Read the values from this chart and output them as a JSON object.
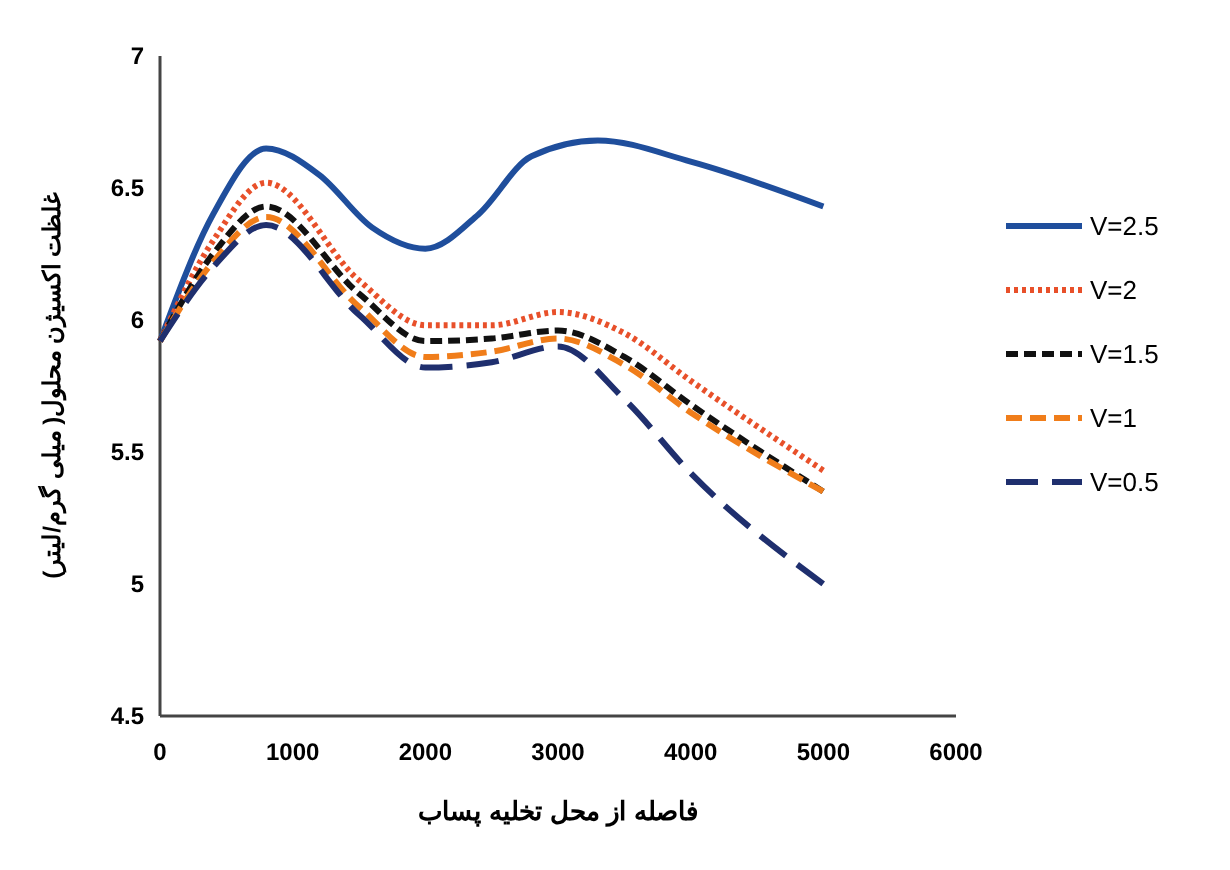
{
  "chart_data": {
    "type": "line",
    "xlabel": "فاصله از محل تخلیه پساب",
    "ylabel": "غلظت اکسیژن محلول( میلی گرم/لیتر)",
    "xlim": [
      0,
      6000
    ],
    "xticks": [
      0,
      1000,
      2000,
      3000,
      4000,
      5000,
      6000
    ],
    "ylim": [
      4.5,
      7
    ],
    "yticks": [
      4.5,
      5,
      5.5,
      6,
      6.5,
      7
    ],
    "grid": false,
    "legend": "right",
    "series": [
      {
        "name": "V=2.5",
        "color": "#1f4e9c",
        "line_style": "solid",
        "x": [
          0,
          400,
          800,
          1200,
          1600,
          2000,
          2400,
          2800,
          3300,
          4000,
          5000
        ],
        "values": [
          5.92,
          6.4,
          6.65,
          6.55,
          6.35,
          6.27,
          6.4,
          6.62,
          6.68,
          6.6,
          6.43
        ]
      },
      {
        "name": "V=2",
        "color": "#e8502a",
        "line_style": "dotted",
        "x": [
          0,
          400,
          800,
          1500,
          2000,
          2500,
          3000,
          3500,
          4000,
          5000
        ],
        "values": [
          5.92,
          6.3,
          6.52,
          6.15,
          5.98,
          5.98,
          6.03,
          5.95,
          5.77,
          5.43
        ]
      },
      {
        "name": "V=1.5",
        "color": "#111111",
        "line_style": "dashed",
        "x": [
          0,
          400,
          800,
          1500,
          2000,
          2500,
          3000,
          3500,
          4000,
          5000
        ],
        "values": [
          5.92,
          6.25,
          6.43,
          6.1,
          5.92,
          5.93,
          5.96,
          5.86,
          5.68,
          5.35
        ]
      },
      {
        "name": "V=1",
        "color": "#f07d1a",
        "line_style": "dashed",
        "x": [
          0,
          400,
          800,
          1500,
          2000,
          2500,
          3000,
          3500,
          4000,
          5000
        ],
        "values": [
          5.92,
          6.22,
          6.39,
          6.05,
          5.86,
          5.88,
          5.93,
          5.83,
          5.65,
          5.35
        ]
      },
      {
        "name": "V=0.5",
        "color": "#1f2f6e",
        "line_style": "dashed",
        "x": [
          0,
          400,
          800,
          1500,
          2000,
          2500,
          3000,
          3500,
          4000,
          5000
        ],
        "values": [
          5.92,
          6.2,
          6.36,
          6.02,
          5.82,
          5.84,
          5.9,
          5.7,
          5.42,
          5.0
        ]
      }
    ]
  }
}
